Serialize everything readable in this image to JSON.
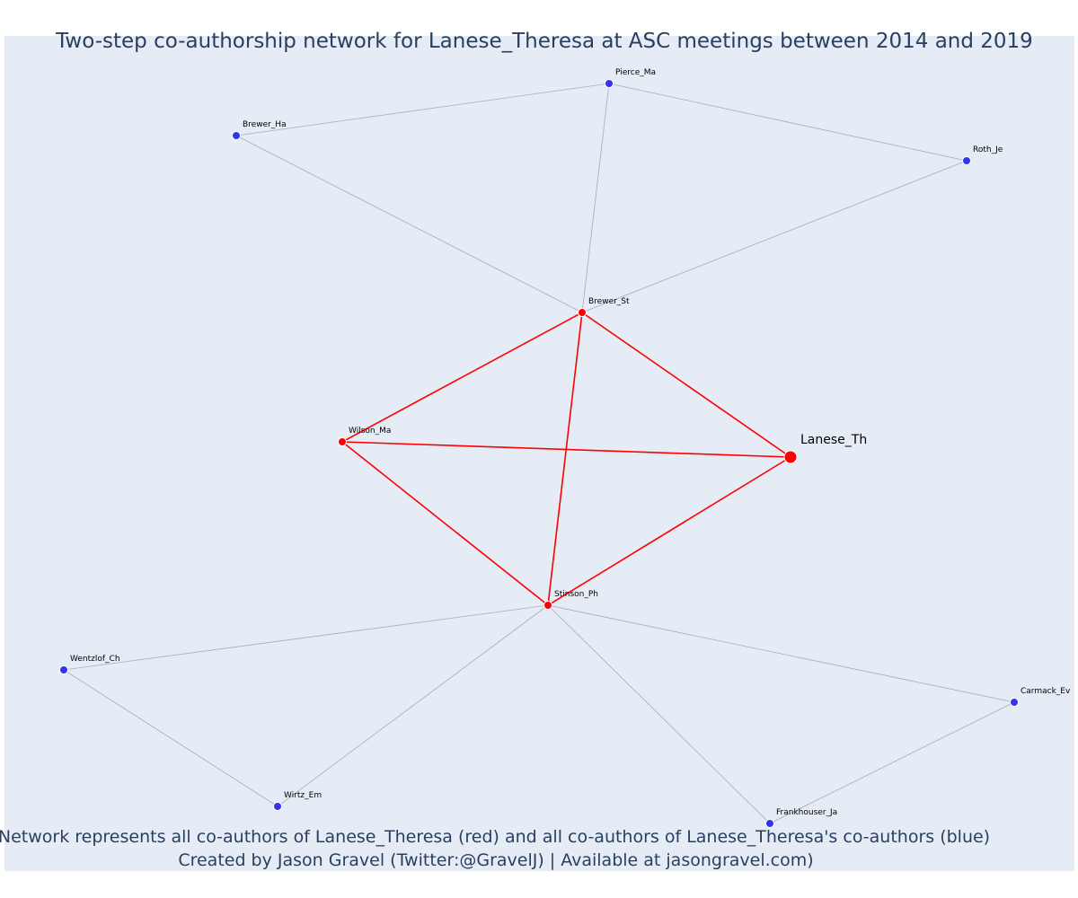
{
  "title": "Two-step co-authorship network for Lanese_Theresa at ASC meetings between 2014 and 2019",
  "footer_line1": "Network represents all co-authors of Lanese_Theresa (red) and all co-authors of Lanese_Theresa's co-authors (blue)",
  "footer_line2": "Created by Jason Gravel (Twitter:@GravelJ) | Available at jasongravel.com)",
  "colors": {
    "background": "#e5ecf6",
    "red_node": "#ff0000",
    "blue_node": "#3333ee",
    "red_edge": "#ff0000",
    "grey_edge": "#aaaabb",
    "text": "#2a3f5f"
  },
  "nodes": [
    {
      "id": "Lanese_Th",
      "group": "ego"
    },
    {
      "id": "Brewer_St",
      "group": "coauthor"
    },
    {
      "id": "Wilson_Ma",
      "group": "coauthor"
    },
    {
      "id": "Stinson_Ph",
      "group": "coauthor"
    },
    {
      "id": "Pierce_Ma",
      "group": "second"
    },
    {
      "id": "Brewer_Ha",
      "group": "second"
    },
    {
      "id": "Roth_Je",
      "group": "second"
    },
    {
      "id": "Wentzlof_Ch",
      "group": "second"
    },
    {
      "id": "Wirtz_Em",
      "group": "second"
    },
    {
      "id": "Frankhouser_Ja",
      "group": "second"
    },
    {
      "id": "Carmack_Ev",
      "group": "second"
    }
  ],
  "edges": [
    {
      "source": "Brewer_St",
      "target": "Wilson_Ma",
      "type": "red"
    },
    {
      "source": "Brewer_St",
      "target": "Lanese_Th",
      "type": "red"
    },
    {
      "source": "Brewer_St",
      "target": "Stinson_Ph",
      "type": "red"
    },
    {
      "source": "Wilson_Ma",
      "target": "Lanese_Th",
      "type": "red"
    },
    {
      "source": "Wilson_Ma",
      "target": "Stinson_Ph",
      "type": "red"
    },
    {
      "source": "Stinson_Ph",
      "target": "Lanese_Th",
      "type": "red"
    },
    {
      "source": "Brewer_Ha",
      "target": "Pierce_Ma",
      "type": "grey"
    },
    {
      "source": "Pierce_Ma",
      "target": "Roth_Je",
      "type": "grey"
    },
    {
      "source": "Brewer_Ha",
      "target": "Brewer_St",
      "type": "grey"
    },
    {
      "source": "Pierce_Ma",
      "target": "Brewer_St",
      "type": "grey"
    },
    {
      "source": "Roth_Je",
      "target": "Brewer_St",
      "type": "grey"
    },
    {
      "source": "Stinson_Ph",
      "target": "Wentzlof_Ch",
      "type": "grey"
    },
    {
      "source": "Stinson_Ph",
      "target": "Wirtz_Em",
      "type": "grey"
    },
    {
      "source": "Stinson_Ph",
      "target": "Frankhouser_Ja",
      "type": "grey"
    },
    {
      "source": "Stinson_Ph",
      "target": "Carmack_Ev",
      "type": "grey"
    },
    {
      "source": "Wentzlof_Ch",
      "target": "Wirtz_Em",
      "type": "grey"
    },
    {
      "source": "Frankhouser_Ja",
      "target": "Carmack_Ev",
      "type": "grey"
    }
  ]
}
